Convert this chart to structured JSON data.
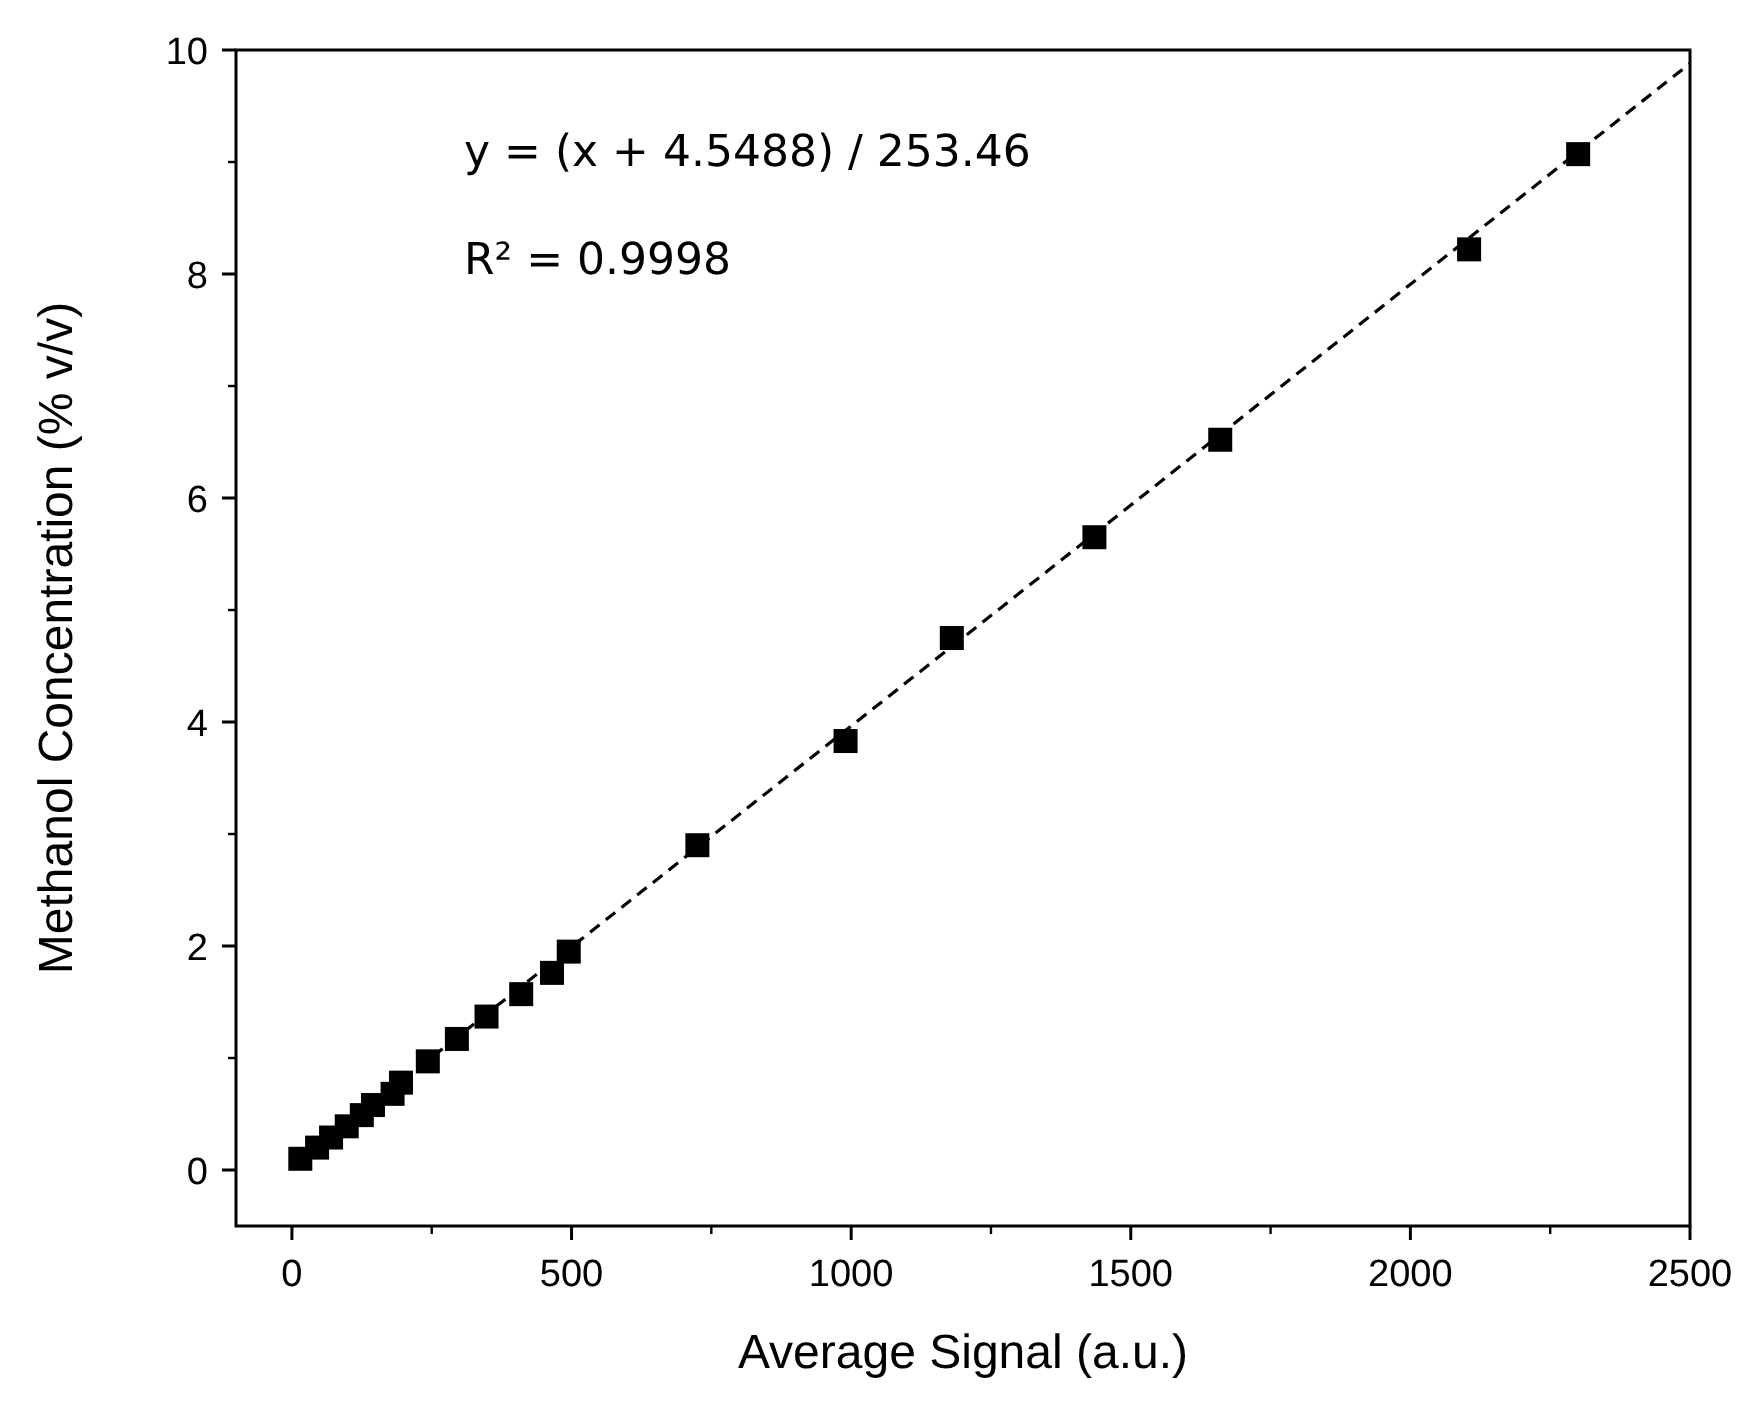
{
  "chart_data": {
    "type": "scatter",
    "xlabel": "Average Signal (a.u.)",
    "ylabel": "Methanol Concentration (% v/v)",
    "xlim": [
      -100,
      2500
    ],
    "xticks": [
      0,
      500,
      1000,
      1500,
      2000,
      2500
    ],
    "ylim": [
      -0.5,
      10
    ],
    "yticks": [
      0,
      2,
      4,
      6,
      8,
      10
    ],
    "marker": "square",
    "grid": false,
    "annotations": [
      "y = (x + 4.5488) / 253.46",
      "R² = 0.9998"
    ],
    "series": [
      {
        "color": "#000000",
        "x": [
          15,
          45,
          70,
          98,
          125,
          145,
          180,
          195,
          243,
          295,
          348,
          410,
          465,
          495,
          725,
          990,
          1180,
          1435,
          1660,
          2105,
          2300
        ],
        "values": [
          0.1,
          0.2,
          0.29,
          0.39,
          0.49,
          0.58,
          0.68,
          0.78,
          0.97,
          1.17,
          1.37,
          1.57,
          1.76,
          1.95,
          2.9,
          3.83,
          4.75,
          5.65,
          6.52,
          8.22,
          9.07
        ]
      },
      {
        "type": "line",
        "color": "#000000",
        "line_style": "dashed",
        "marker": "none",
        "x": [
          0,
          2500
        ],
        "values": [
          0.02,
          9.88
        ]
      }
    ]
  }
}
